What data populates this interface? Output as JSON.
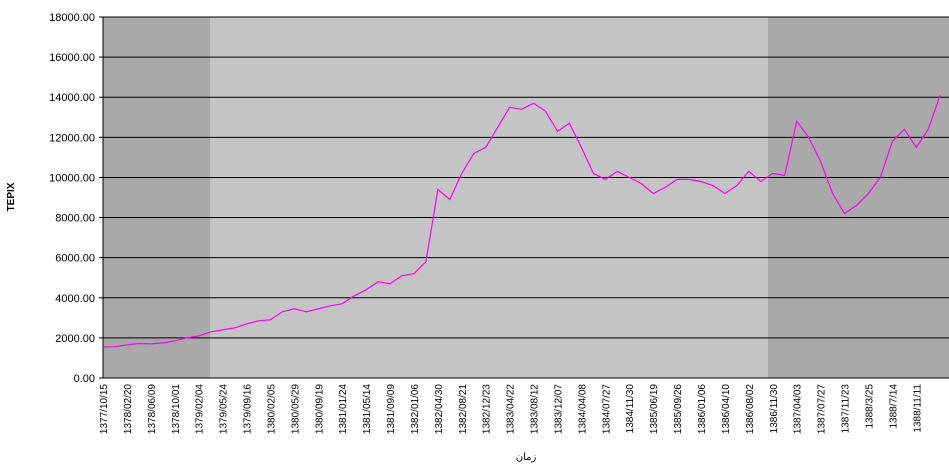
{
  "chart_data": {
    "type": "line",
    "y_label": "TEPIX",
    "x_label": "زمان",
    "categories": [
      "1377/10/15",
      null,
      "1378/02/20",
      null,
      "1378/06/09",
      null,
      "1378/10/01",
      null,
      "1379/02/04",
      null,
      "1379/05/24",
      null,
      "1379/09/16",
      null,
      "1380/02/05",
      null,
      "1380/05/29",
      null,
      "1380/09/19",
      null,
      "1381/01/24",
      null,
      "1381/05/14",
      null,
      "1381/09/09",
      null,
      "1382/01/06",
      null,
      "1382/04/30",
      null,
      "1382/08/21",
      null,
      "1382/12/23",
      null,
      "1383/04/22",
      null,
      "1383/08/12",
      null,
      "1383/12/07",
      null,
      "1384/04/08",
      null,
      "1384/07/27",
      null,
      "1384/11/30",
      null,
      "1385/06/19",
      null,
      "1385/09/26",
      null,
      "1386/01/06",
      null,
      "1386/04/10",
      null,
      "1386/08/02",
      null,
      "1386/11/30",
      null,
      "1387/04/03",
      null,
      "1387/07/27",
      null,
      "1387/11/23",
      null,
      "1388/3/25",
      null,
      "1388/7/14",
      null,
      "1388/11/11",
      null,
      null
    ],
    "series": [
      {
        "name": "TEPIX",
        "color": "#ff00ff",
        "values": [
          1550,
          1560,
          1650,
          1720,
          1700,
          1750,
          1850,
          2000,
          2100,
          2300,
          2400,
          2500,
          2700,
          2850,
          2900,
          3300,
          3450,
          3300,
          3450,
          3600,
          3700,
          4100,
          4400,
          4800,
          4700,
          5100,
          5200,
          5800,
          9400,
          8900,
          10200,
          11200,
          11500,
          12500,
          13500,
          13400,
          13700,
          13300,
          12300,
          12700,
          11500,
          10200,
          9900,
          10300,
          10000,
          9700,
          9200,
          9500,
          9900,
          9900,
          9800,
          9600,
          9200,
          9600,
          10300,
          9800,
          10200,
          10100,
          12800,
          12000,
          10800,
          9200,
          8200,
          8600,
          9200,
          10000,
          11800,
          12400,
          11500,
          12400,
          14100
        ]
      }
    ],
    "ylim": [
      0,
      18000
    ],
    "yticks": [
      {
        "value": 0,
        "label": "0.00"
      },
      {
        "value": 2000,
        "label": "2000.00"
      },
      {
        "value": 4000,
        "label": "4000.00"
      },
      {
        "value": 6000,
        "label": "6000.00"
      },
      {
        "value": 8000,
        "label": "8000.00"
      },
      {
        "value": 10000,
        "label": "10000.00"
      },
      {
        "value": 12000,
        "label": "12000.00"
      },
      {
        "value": 14000,
        "label": "14000.00"
      },
      {
        "value": 16000,
        "label": "16000.00"
      },
      {
        "value": 18000,
        "label": "18000.00"
      }
    ],
    "grid": true
  }
}
